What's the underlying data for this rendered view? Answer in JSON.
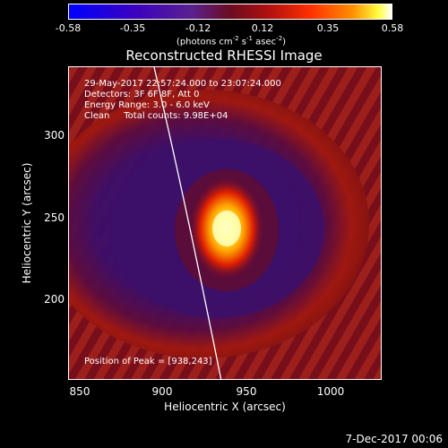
{
  "colorbar": {
    "ticks": [
      "-0.58",
      "-0.35",
      "-0.12",
      "0.12",
      "0.35",
      "0.58"
    ],
    "unit_prefix": "(photons cm",
    "unit_exp1": "-2",
    "unit_mid": " s",
    "unit_exp2": "-1",
    "unit_mid2": " asec",
    "unit_exp3": "-2",
    "unit_suffix": ")"
  },
  "title": "Reconstructed RHESSI Image",
  "info": {
    "line1": "29-May-2017 22:57:24.000 to 23:07:24.000",
    "line2": "Detectors: 3F 6F 8F, Att 0",
    "line3": "Energy Range: 3.0 - 6.0 keV",
    "line4": "Clean     Total counts: 9.98E+04"
  },
  "peak_label": "Position of Peak = [938,243]",
  "axes": {
    "x_label": "Heliocentric X (arcsec)",
    "y_label": "Heliocentric Y (arcsec)",
    "x_ticks": [
      "850",
      "900",
      "950",
      "1000"
    ],
    "y_ticks": [
      "300",
      "250",
      "200"
    ]
  },
  "footer": "7-Dec-2017 00:06"
}
